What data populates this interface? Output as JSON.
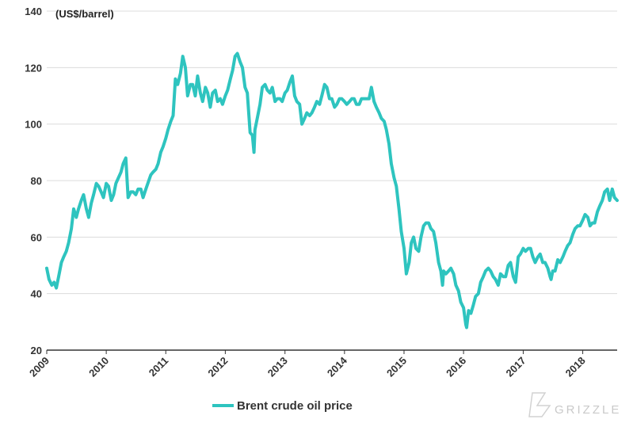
{
  "chart_data": {
    "type": "line",
    "title": "",
    "ylabel": "(US$/barrel)",
    "xlabel": "",
    "ylim": [
      20,
      140
    ],
    "yticks": [
      20,
      40,
      60,
      80,
      100,
      120,
      140
    ],
    "xlim": [
      "2009-01-01",
      "2018-07-31"
    ],
    "xticks": [
      "2009",
      "2010",
      "2011",
      "2012",
      "2013",
      "2014",
      "2015",
      "2016",
      "2017",
      "2018"
    ],
    "grid": "horizontal",
    "legend_position": "bottom-center",
    "series": [
      {
        "name": "Brent crude oil price",
        "color": "#2ec4bf",
        "x": [
          "2009-01-01",
          "2009-01-15",
          "2009-02-01",
          "2009-02-15",
          "2009-03-01",
          "2009-03-15",
          "2009-04-01",
          "2009-04-15",
          "2009-05-01",
          "2009-05-15",
          "2009-06-01",
          "2009-06-15",
          "2009-07-01",
          "2009-07-15",
          "2009-08-01",
          "2009-08-15",
          "2009-09-01",
          "2009-09-15",
          "2009-10-01",
          "2009-10-15",
          "2009-11-01",
          "2009-11-15",
          "2009-12-01",
          "2009-12-15",
          "2010-01-01",
          "2010-01-15",
          "2010-02-01",
          "2010-02-15",
          "2010-03-01",
          "2010-04-01",
          "2010-04-15",
          "2010-05-01",
          "2010-05-15",
          "2010-06-01",
          "2010-06-15",
          "2010-07-01",
          "2010-07-15",
          "2010-08-01",
          "2010-08-15",
          "2010-09-01",
          "2010-10-01",
          "2010-10-15",
          "2010-11-01",
          "2010-11-15",
          "2010-12-01",
          "2010-12-15",
          "2011-01-01",
          "2011-01-15",
          "2011-02-01",
          "2011-02-15",
          "2011-03-01",
          "2011-03-15",
          "2011-04-01",
          "2011-04-15",
          "2011-05-01",
          "2011-05-15",
          "2011-06-01",
          "2011-06-15",
          "2011-07-01",
          "2011-07-15",
          "2011-08-01",
          "2011-08-15",
          "2011-09-01",
          "2011-09-15",
          "2011-10-01",
          "2011-10-15",
          "2011-11-01",
          "2011-11-15",
          "2011-12-01",
          "2011-12-15",
          "2012-01-01",
          "2012-01-15",
          "2012-02-01",
          "2012-02-15",
          "2012-03-01",
          "2012-03-15",
          "2012-04-01",
          "2012-04-15",
          "2012-05-01",
          "2012-05-15",
          "2012-06-01",
          "2012-06-15",
          "2012-06-25",
          "2012-07-01",
          "2012-07-15",
          "2012-08-01",
          "2012-08-15",
          "2012-09-01",
          "2012-09-15",
          "2012-10-01",
          "2012-10-15",
          "2012-11-01",
          "2012-11-15",
          "2012-12-01",
          "2012-12-15",
          "2013-01-01",
          "2013-01-15",
          "2013-02-01",
          "2013-02-15",
          "2013-03-01",
          "2013-03-15",
          "2013-04-01",
          "2013-04-15",
          "2013-05-01",
          "2013-05-15",
          "2013-06-01",
          "2013-06-15",
          "2013-07-01",
          "2013-07-15",
          "2013-08-01",
          "2013-08-15",
          "2013-09-01",
          "2013-09-15",
          "2013-10-01",
          "2013-10-15",
          "2013-11-01",
          "2013-11-15",
          "2013-12-01",
          "2013-12-15",
          "2014-01-01",
          "2014-01-15",
          "2014-02-01",
          "2014-02-15",
          "2014-03-01",
          "2014-03-15",
          "2014-04-01",
          "2014-04-15",
          "2014-05-01",
          "2014-05-15",
          "2014-06-01",
          "2014-06-15",
          "2014-07-01",
          "2014-07-15",
          "2014-08-01",
          "2014-08-15",
          "2014-09-01",
          "2014-09-15",
          "2014-10-01",
          "2014-10-15",
          "2014-11-01",
          "2014-11-15",
          "2014-12-01",
          "2014-12-15",
          "2015-01-01",
          "2015-01-15",
          "2015-02-01",
          "2015-02-15",
          "2015-03-01",
          "2015-03-15",
          "2015-04-01",
          "2015-04-15",
          "2015-05-01",
          "2015-05-15",
          "2015-06-01",
          "2015-06-15",
          "2015-07-01",
          "2015-07-15",
          "2015-08-01",
          "2015-08-15",
          "2015-08-25",
          "2015-09-01",
          "2015-09-15",
          "2015-10-01",
          "2015-10-15",
          "2015-11-01",
          "2015-11-15",
          "2015-12-01",
          "2015-12-15",
          "2016-01-01",
          "2016-01-15",
          "2016-01-20",
          "2016-02-01",
          "2016-02-15",
          "2016-03-01",
          "2016-03-15",
          "2016-04-01",
          "2016-04-15",
          "2016-05-01",
          "2016-05-15",
          "2016-06-01",
          "2016-06-15",
          "2016-07-01",
          "2016-07-15",
          "2016-08-01",
          "2016-08-15",
          "2016-09-01",
          "2016-09-15",
          "2016-10-01",
          "2016-10-15",
          "2016-11-01",
          "2016-11-15",
          "2016-12-01",
          "2016-12-15",
          "2017-01-01",
          "2017-01-15",
          "2017-02-01",
          "2017-02-15",
          "2017-03-01",
          "2017-03-15",
          "2017-04-01",
          "2017-04-15",
          "2017-05-01",
          "2017-05-15",
          "2017-06-01",
          "2017-06-15",
          "2017-06-21",
          "2017-07-01",
          "2017-07-15",
          "2017-08-01",
          "2017-08-15",
          "2017-09-01",
          "2017-09-15",
          "2017-10-01",
          "2017-10-15",
          "2017-11-01",
          "2017-11-15",
          "2017-12-01",
          "2017-12-15",
          "2018-01-01",
          "2018-01-15",
          "2018-02-01",
          "2018-02-15",
          "2018-03-01",
          "2018-03-15",
          "2018-04-01",
          "2018-04-15",
          "2018-05-01",
          "2018-05-15",
          "2018-06-01",
          "2018-06-15",
          "2018-07-01",
          "2018-07-15",
          "2018-07-31"
        ],
        "values": [
          49,
          45,
          43,
          44,
          42,
          46,
          51,
          53,
          55,
          58,
          63,
          70,
          67,
          70,
          73,
          75,
          70,
          67,
          72,
          75,
          79,
          78,
          76,
          74,
          79,
          78,
          73,
          75,
          79,
          83,
          86,
          88,
          74,
          76,
          76,
          75,
          77,
          77,
          74,
          77,
          82,
          83,
          84,
          86,
          90,
          92,
          95,
          98,
          101,
          103,
          116,
          114,
          118,
          124,
          120,
          110,
          114,
          114,
          110,
          117,
          111,
          108,
          113,
          111,
          106,
          111,
          112,
          108,
          109,
          107,
          110,
          112,
          116,
          119,
          124,
          125,
          122,
          120,
          113,
          111,
          97,
          96,
          90,
          98,
          102,
          107,
          113,
          114,
          112,
          111,
          113,
          108,
          109,
          109,
          108,
          111,
          112,
          115,
          117,
          110,
          108,
          107,
          100,
          102,
          104,
          103,
          104,
          106,
          108,
          107,
          110,
          114,
          113,
          109,
          109,
          106,
          107,
          109,
          109,
          108,
          107,
          108,
          109,
          109,
          107,
          107,
          109,
          109,
          109,
          109,
          113,
          108,
          106,
          104,
          102,
          101,
          98,
          93,
          86,
          81,
          78,
          70,
          62,
          56,
          47,
          51,
          58,
          60,
          56,
          55,
          60,
          64,
          65,
          65,
          63,
          62,
          58,
          51,
          48,
          43,
          48,
          47,
          48,
          49,
          47,
          43,
          41,
          37,
          35,
          29,
          28,
          34,
          33,
          36,
          39,
          40,
          44,
          46,
          48,
          49,
          48,
          46,
          45,
          43,
          47,
          46,
          46,
          50,
          51,
          46,
          44,
          53,
          54,
          56,
          55,
          56,
          56,
          53,
          51,
          53,
          54,
          51,
          51,
          49,
          46,
          45,
          48,
          48,
          52,
          51,
          53,
          55,
          57,
          58,
          61,
          63,
          64,
          64,
          66,
          68,
          67,
          64,
          65,
          65,
          69,
          71,
          73,
          76,
          77,
          73,
          77,
          74,
          73
        ]
      }
    ]
  },
  "branding": {
    "logo_text": "GRIZZLE",
    "logo_icon": "grizzle-logo-icon"
  }
}
